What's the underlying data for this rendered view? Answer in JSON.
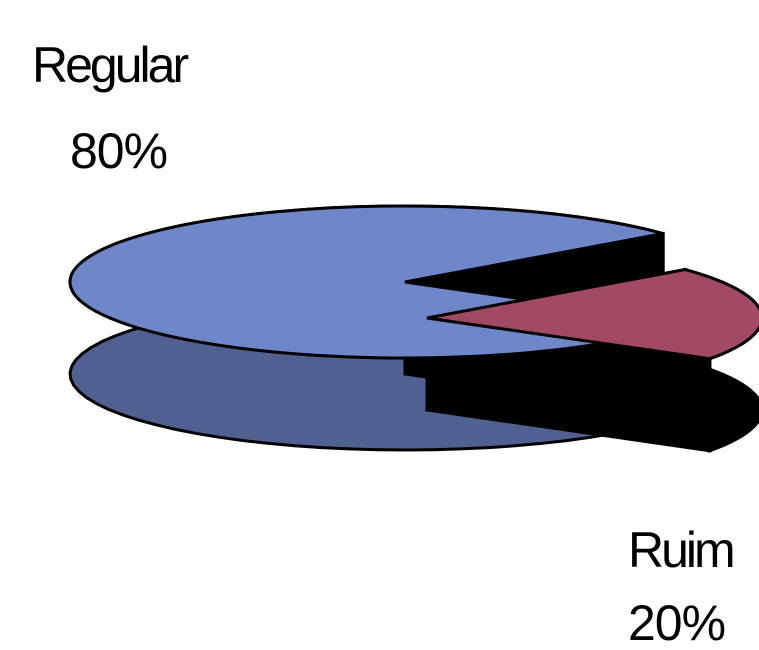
{
  "chart_data": {
    "type": "pie",
    "style": "3d-exploded",
    "categories": [
      "Regular",
      "Ruim"
    ],
    "values": [
      80,
      20
    ],
    "value_labels": [
      "80%",
      "20%"
    ],
    "exploded": [
      "Ruim"
    ],
    "colors": {
      "Regular": "#6f86c8",
      "Ruim": "#a24a64",
      "edge": "#000000"
    },
    "legend": "none"
  }
}
